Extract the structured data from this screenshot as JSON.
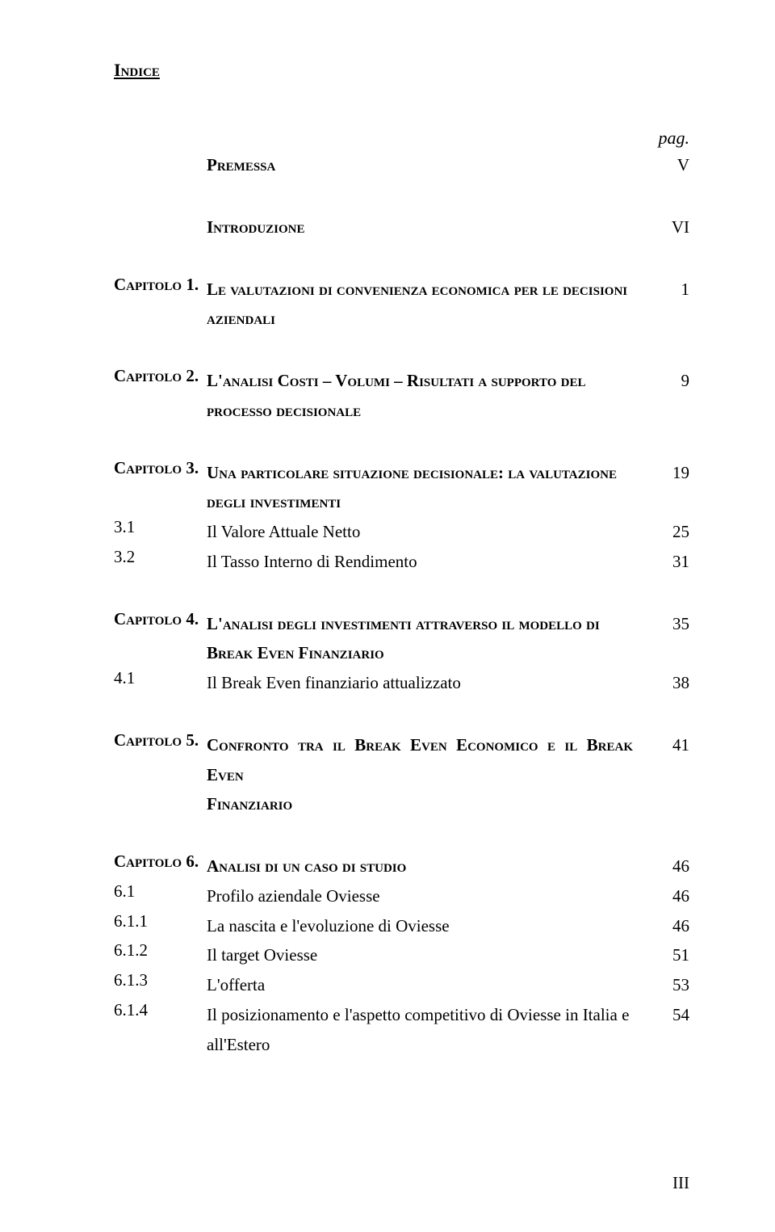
{
  "title": "Indice",
  "page_label": "pag.",
  "premessa": {
    "label": "Premessa",
    "page": "V"
  },
  "intro": {
    "label": "Introduzione",
    "page": "VI"
  },
  "ch1": {
    "num": "Capitolo 1.",
    "label_line1": "Le valutazioni di convenienza economica per le decisioni",
    "label_line2": "aziendali",
    "page": "1"
  },
  "ch2": {
    "num": "Capitolo 2.",
    "label_line1": "L'analisi Costi – Volumi – Risultati a supporto del",
    "label_line2": "processo decisionale",
    "page": "9"
  },
  "ch3": {
    "num": "Capitolo 3.",
    "label_line1": "Una particolare situazione decisionale: la valutazione",
    "label_line2": "degli investimenti",
    "page": "19",
    "s1": {
      "num": "3.1",
      "label": "Il Valore Attuale Netto",
      "page": "25"
    },
    "s2": {
      "num": "3.2",
      "label": "Il Tasso Interno di Rendimento",
      "page": "31"
    }
  },
  "ch4": {
    "num": "Capitolo 4.",
    "label_line1": "L'analisi degli investimenti attraverso il modello di",
    "label_line2": "Break Even Finanziario",
    "page": "35",
    "s1": {
      "num": "4.1",
      "label": "Il Break Even finanziario attualizzato",
      "page": "38"
    }
  },
  "ch5": {
    "num": "Capitolo 5.",
    "label_line1": "Confronto tra il Break Even Economico e il Break Even",
    "label_line2": "Finanziario",
    "page": "41"
  },
  "ch6": {
    "num": "Capitolo 6.",
    "label": "Analisi di un caso di studio",
    "page": "46",
    "s1": {
      "num": "6.1",
      "label": "Profilo aziendale Oviesse",
      "page": "46"
    },
    "s11": {
      "num": "6.1.1",
      "label": "La nascita e l'evoluzione di Oviesse",
      "page": "46"
    },
    "s12": {
      "num": "6.1.2",
      "label": "Il target Oviesse",
      "page": "51"
    },
    "s13": {
      "num": "6.1.3",
      "label": "L'offerta",
      "page": "53"
    },
    "s14": {
      "num": "6.1.4",
      "label_line1": "Il posizionamento e l'aspetto competitivo di Oviesse in Italia e",
      "label_line2": "all'Estero",
      "page": "54"
    }
  },
  "footer_page": "III"
}
